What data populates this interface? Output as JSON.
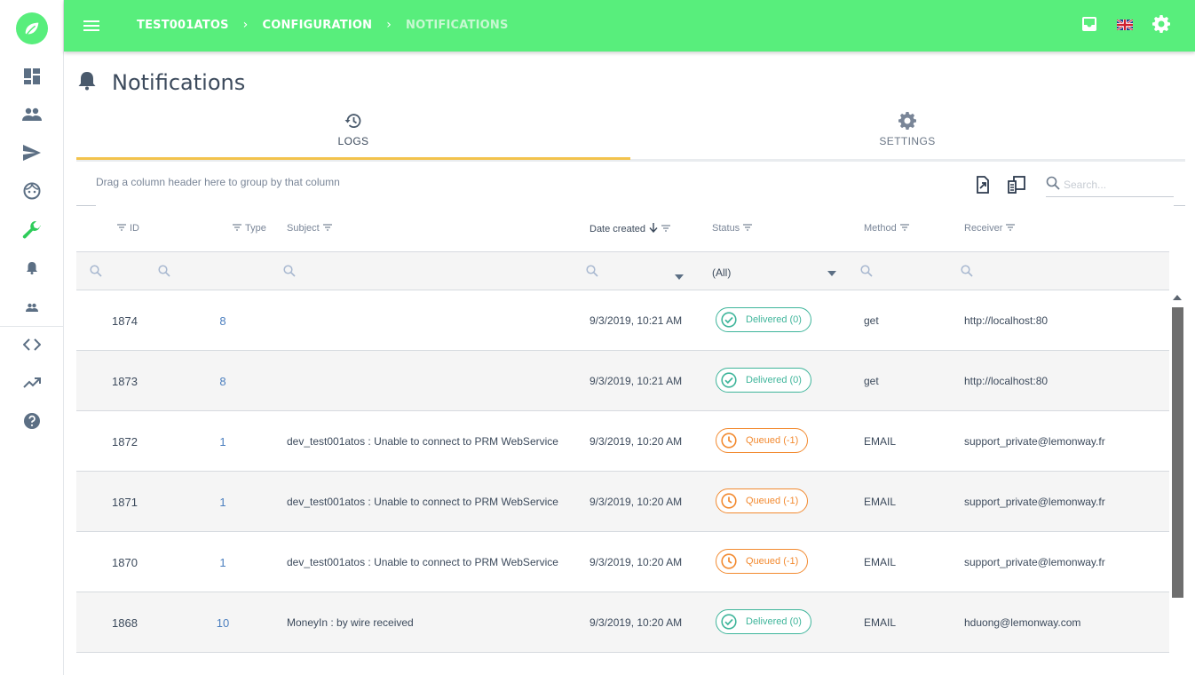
{
  "topbar": {
    "breadcrumbs": [
      "TEST001ATOS",
      "CONFIGURATION",
      "NOTIFICATIONS"
    ],
    "separator": "›",
    "color": "#58ee7c"
  },
  "sidebar": {
    "items": [
      "dashboard-icon",
      "people-icon",
      "send-icon",
      "face-icon",
      "wrench-icon",
      "bell-icon",
      "group-icon",
      "code-icon",
      "trending-icon",
      "help-icon"
    ],
    "active": "wrench-icon"
  },
  "page": {
    "title": "Notifications"
  },
  "tabs": [
    {
      "label": "LOGS",
      "icon": "history-icon",
      "active": true
    },
    {
      "label": "SETTINGS",
      "icon": "gear-icon",
      "active": false
    }
  ],
  "grid": {
    "group_hint": "Drag a column header here to group by that column",
    "search_placeholder": "Search...",
    "columns": {
      "id": "ID",
      "type": "Type",
      "subject": "Subject",
      "date": "Date created",
      "status": "Status",
      "method": "Method",
      "receiver": "Receiver"
    },
    "status_filter": "(All)",
    "rows": [
      {
        "id": "1874",
        "type": "8",
        "subject": "",
        "date": "9/3/2019, 10:21 AM",
        "status": "Delivered (0)",
        "status_kind": "delivered",
        "method": "get",
        "receiver": "http://localhost:80"
      },
      {
        "id": "1873",
        "type": "8",
        "subject": "",
        "date": "9/3/2019, 10:21 AM",
        "status": "Delivered (0)",
        "status_kind": "delivered",
        "method": "get",
        "receiver": "http://localhost:80"
      },
      {
        "id": "1872",
        "type": "1",
        "subject": "dev_test001atos : Unable to connect to PRM WebService",
        "date": "9/3/2019, 10:20 AM",
        "status": "Queued (-1)",
        "status_kind": "queued",
        "method": "EMAIL",
        "receiver": "support_private@lemonway.fr"
      },
      {
        "id": "1871",
        "type": "1",
        "subject": "dev_test001atos : Unable to connect to PRM WebService",
        "date": "9/3/2019, 10:20 AM",
        "status": "Queued (-1)",
        "status_kind": "queued",
        "method": "EMAIL",
        "receiver": "support_private@lemonway.fr"
      },
      {
        "id": "1870",
        "type": "1",
        "subject": "dev_test001atos : Unable to connect to PRM WebService",
        "date": "9/3/2019, 10:20 AM",
        "status": "Queued (-1)",
        "status_kind": "queued",
        "method": "EMAIL",
        "receiver": "support_private@lemonway.fr"
      },
      {
        "id": "1868",
        "type": "10",
        "subject": "MoneyIn : by wire received",
        "date": "9/3/2019, 10:20 AM",
        "status": "Delivered (0)",
        "status_kind": "delivered",
        "method": "EMAIL",
        "receiver": "hduong@lemonway.com"
      }
    ]
  }
}
